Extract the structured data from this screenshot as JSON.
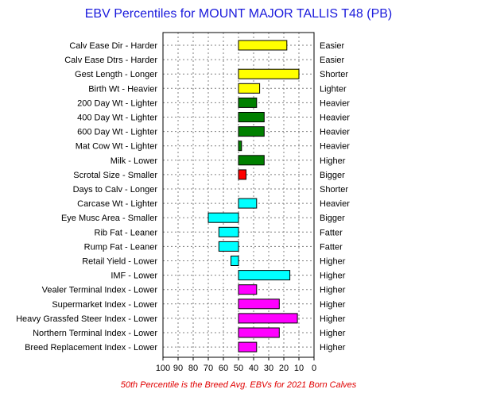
{
  "title": "EBV Percentiles for MOUNT MAJOR TALLIS T48 (PB)",
  "footnote": "50th Percentile is the Breed Avg. EBVs for 2021 Born Calves",
  "chart_data": {
    "type": "bar",
    "orientation": "horizontal",
    "xlim": [
      100,
      0
    ],
    "x_ticks": [
      100,
      90,
      80,
      70,
      60,
      50,
      40,
      30,
      20,
      10,
      0
    ],
    "baseline": 50,
    "grid": true,
    "rows": [
      {
        "left": "Calv Ease Dir - Harder",
        "right": "Easier",
        "value": 18,
        "color": "#ffff00"
      },
      {
        "left": "Calv Ease Dtrs - Harder",
        "right": "Easier",
        "value": null,
        "color": "#ffff00"
      },
      {
        "left": "Gest Length - Longer",
        "right": "Shorter",
        "value": 10,
        "color": "#ffff00"
      },
      {
        "left": "Birth Wt - Heavier",
        "right": "Lighter",
        "value": 36,
        "color": "#ffff00"
      },
      {
        "left": "200 Day Wt - Lighter",
        "right": "Heavier",
        "value": 38,
        "color": "#008000"
      },
      {
        "left": "400 Day Wt - Lighter",
        "right": "Heavier",
        "value": 33,
        "color": "#008000"
      },
      {
        "left": "600 Day Wt - Lighter",
        "right": "Heavier",
        "value": 33,
        "color": "#008000"
      },
      {
        "left": "Mat Cow Wt - Lighter",
        "right": "Heavier",
        "value": 48,
        "color": "#008000"
      },
      {
        "left": "Milk - Lower",
        "right": "Higher",
        "value": 33,
        "color": "#008000"
      },
      {
        "left": "Scrotal Size - Smaller",
        "right": "Bigger",
        "value": 45,
        "color": "#ff0000"
      },
      {
        "left": "Days to Calv - Longer",
        "right": "Shorter",
        "value": null,
        "color": "#ff0000"
      },
      {
        "left": "Carcase Wt - Lighter",
        "right": "Heavier",
        "value": 38,
        "color": "#00ffff"
      },
      {
        "left": "Eye Musc Area - Smaller",
        "right": "Bigger",
        "value": 70,
        "color": "#00ffff"
      },
      {
        "left": "Rib Fat - Leaner",
        "right": "Fatter",
        "value": 63,
        "color": "#00ffff"
      },
      {
        "left": "Rump Fat - Leaner",
        "right": "Fatter",
        "value": 63,
        "color": "#00ffff"
      },
      {
        "left": "Retail Yield - Lower",
        "right": "Higher",
        "value": 55,
        "color": "#00ffff"
      },
      {
        "left": "IMF - Lower",
        "right": "Higher",
        "value": 16,
        "color": "#00ffff"
      },
      {
        "left": "Vealer Terminal Index - Lower",
        "right": "Higher",
        "value": 38,
        "color": "#ff00ff"
      },
      {
        "left": "Supermarket Index - Lower",
        "right": "Higher",
        "value": 23,
        "color": "#ff00ff"
      },
      {
        "left": "Heavy Grassfed Steer Index - Lower",
        "right": "Higher",
        "value": 11,
        "color": "#ff00ff"
      },
      {
        "left": "Northern Terminal Index - Lower",
        "right": "Higher",
        "value": 23,
        "color": "#ff00ff"
      },
      {
        "left": "Breed Replacement Index - Lower",
        "right": "Higher",
        "value": 38,
        "color": "#ff00ff"
      }
    ]
  }
}
